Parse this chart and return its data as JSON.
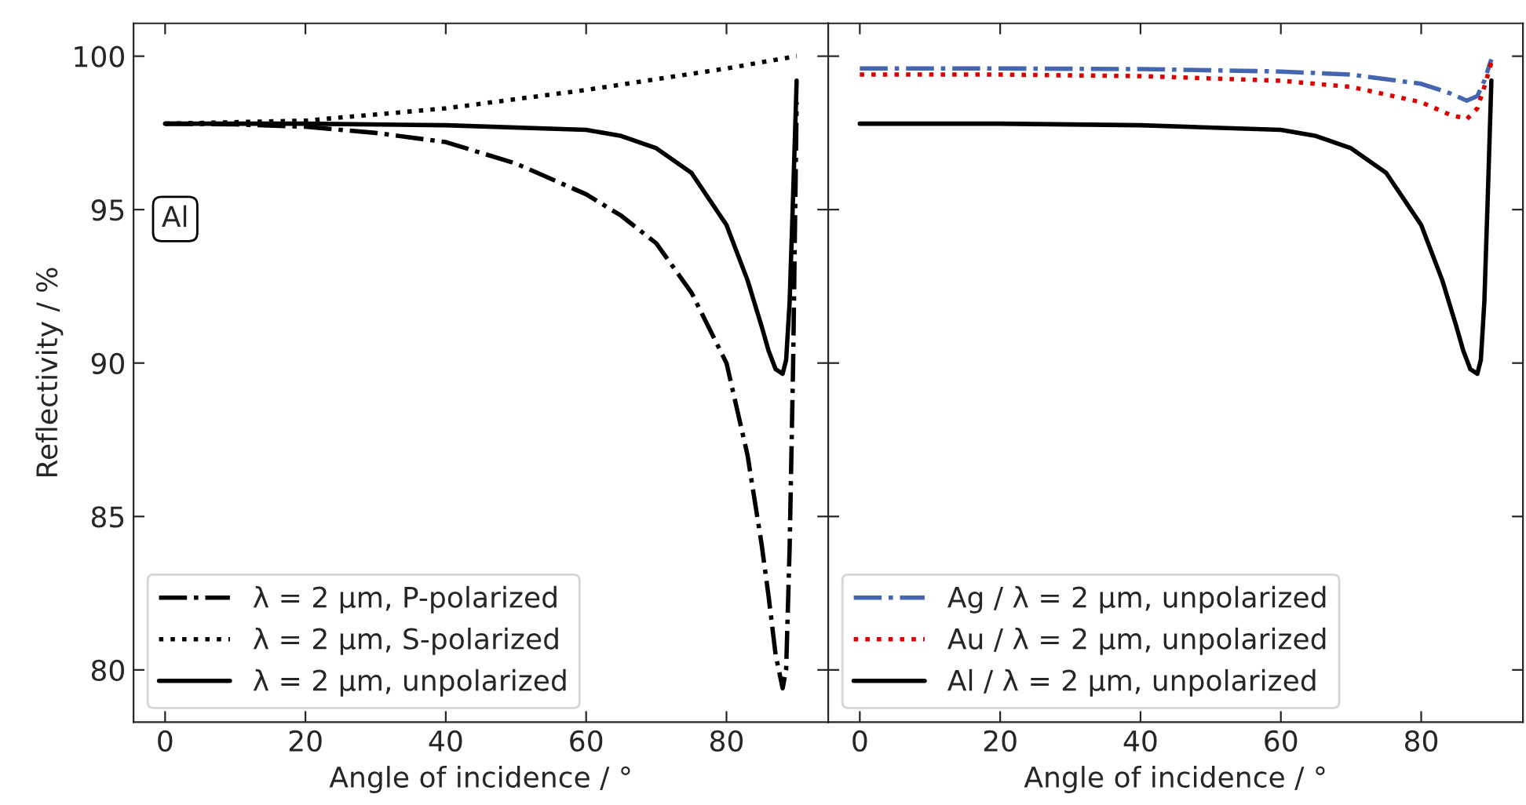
{
  "chart_data": [
    {
      "type": "line",
      "xlabel": "Angle of incidence / °",
      "ylabel": "Reflectivity / %",
      "xlim": [
        -4.5,
        94.5
      ],
      "ylim": [
        78.3,
        101.07
      ],
      "xticks": [
        0,
        20,
        40,
        60,
        80
      ],
      "yticks": [
        80,
        85,
        90,
        95,
        100
      ],
      "grid": false,
      "legend": "bottom left",
      "annotations": [
        "Al"
      ],
      "series": [
        {
          "name": "λ = 2 µm, P-polarized",
          "color": "#000000",
          "line_style": "dashdot",
          "x": [
            0,
            10,
            20,
            30,
            40,
            50,
            60,
            65,
            70,
            75,
            80,
            83,
            85,
            86,
            87,
            88,
            88.5,
            89,
            89.5,
            90
          ],
          "values": [
            97.8,
            97.78,
            97.7,
            97.5,
            97.2,
            96.5,
            95.5,
            94.8,
            93.9,
            92.3,
            90.0,
            87.0,
            84.1,
            82.4,
            80.5,
            79.4,
            80.0,
            84.0,
            90.0,
            98.5
          ]
        },
        {
          "name": "λ = 2 µm, S-polarized",
          "color": "#000000",
          "line_style": "dotted",
          "x": [
            0,
            20,
            40,
            60,
            80,
            90
          ],
          "values": [
            97.8,
            97.9,
            98.3,
            98.9,
            99.6,
            100.0
          ]
        },
        {
          "name": "λ = 2 µm, unpolarized",
          "color": "#000000",
          "line_style": "solid",
          "x": [
            0,
            20,
            40,
            60,
            65,
            70,
            75,
            80,
            83,
            85,
            86,
            87,
            88,
            88.5,
            89,
            89.5,
            90
          ],
          "values": [
            97.8,
            97.8,
            97.75,
            97.6,
            97.4,
            97.0,
            96.2,
            94.5,
            92.7,
            91.2,
            90.4,
            89.8,
            89.65,
            90.1,
            92.0,
            95.5,
            99.2
          ]
        }
      ]
    },
    {
      "type": "line",
      "xlabel": "Angle of incidence / °",
      "xlim": [
        -4.5,
        94.5
      ],
      "ylim": [
        78.3,
        101.07
      ],
      "xticks": [
        0,
        20,
        40,
        60,
        80
      ],
      "yticks": [
        80,
        85,
        90,
        95,
        100
      ],
      "tick_labels": "x",
      "grid": false,
      "legend": "bottom left",
      "series": [
        {
          "name": "Ag / λ = 2 µm, unpolarized",
          "color": "#4466b0",
          "line_style": "dashdot",
          "x": [
            0,
            20,
            40,
            60,
            70,
            80,
            84,
            86.5,
            88,
            89,
            90
          ],
          "values": [
            99.6,
            99.6,
            99.58,
            99.5,
            99.4,
            99.1,
            98.8,
            98.55,
            98.7,
            99.2,
            99.9
          ]
        },
        {
          "name": "Au / λ = 2 µm, unpolarized",
          "color": "#dd0000",
          "line_style": "dotted",
          "x": [
            0,
            20,
            40,
            60,
            70,
            80,
            84,
            86.5,
            88,
            89,
            90
          ],
          "values": [
            99.4,
            99.4,
            99.35,
            99.2,
            99.0,
            98.5,
            98.1,
            97.95,
            98.3,
            99.0,
            99.8
          ]
        },
        {
          "name": "Al / λ = 2 µm, unpolarized",
          "color": "#000000",
          "line_style": "solid",
          "x": [
            0,
            20,
            40,
            60,
            65,
            70,
            75,
            80,
            83,
            85,
            86,
            87,
            88,
            88.5,
            89,
            89.5,
            90
          ],
          "values": [
            97.8,
            97.8,
            97.75,
            97.6,
            97.4,
            97.0,
            96.2,
            94.5,
            92.7,
            91.2,
            90.4,
            89.8,
            89.65,
            90.1,
            92.0,
            95.5,
            99.2
          ]
        }
      ]
    }
  ]
}
